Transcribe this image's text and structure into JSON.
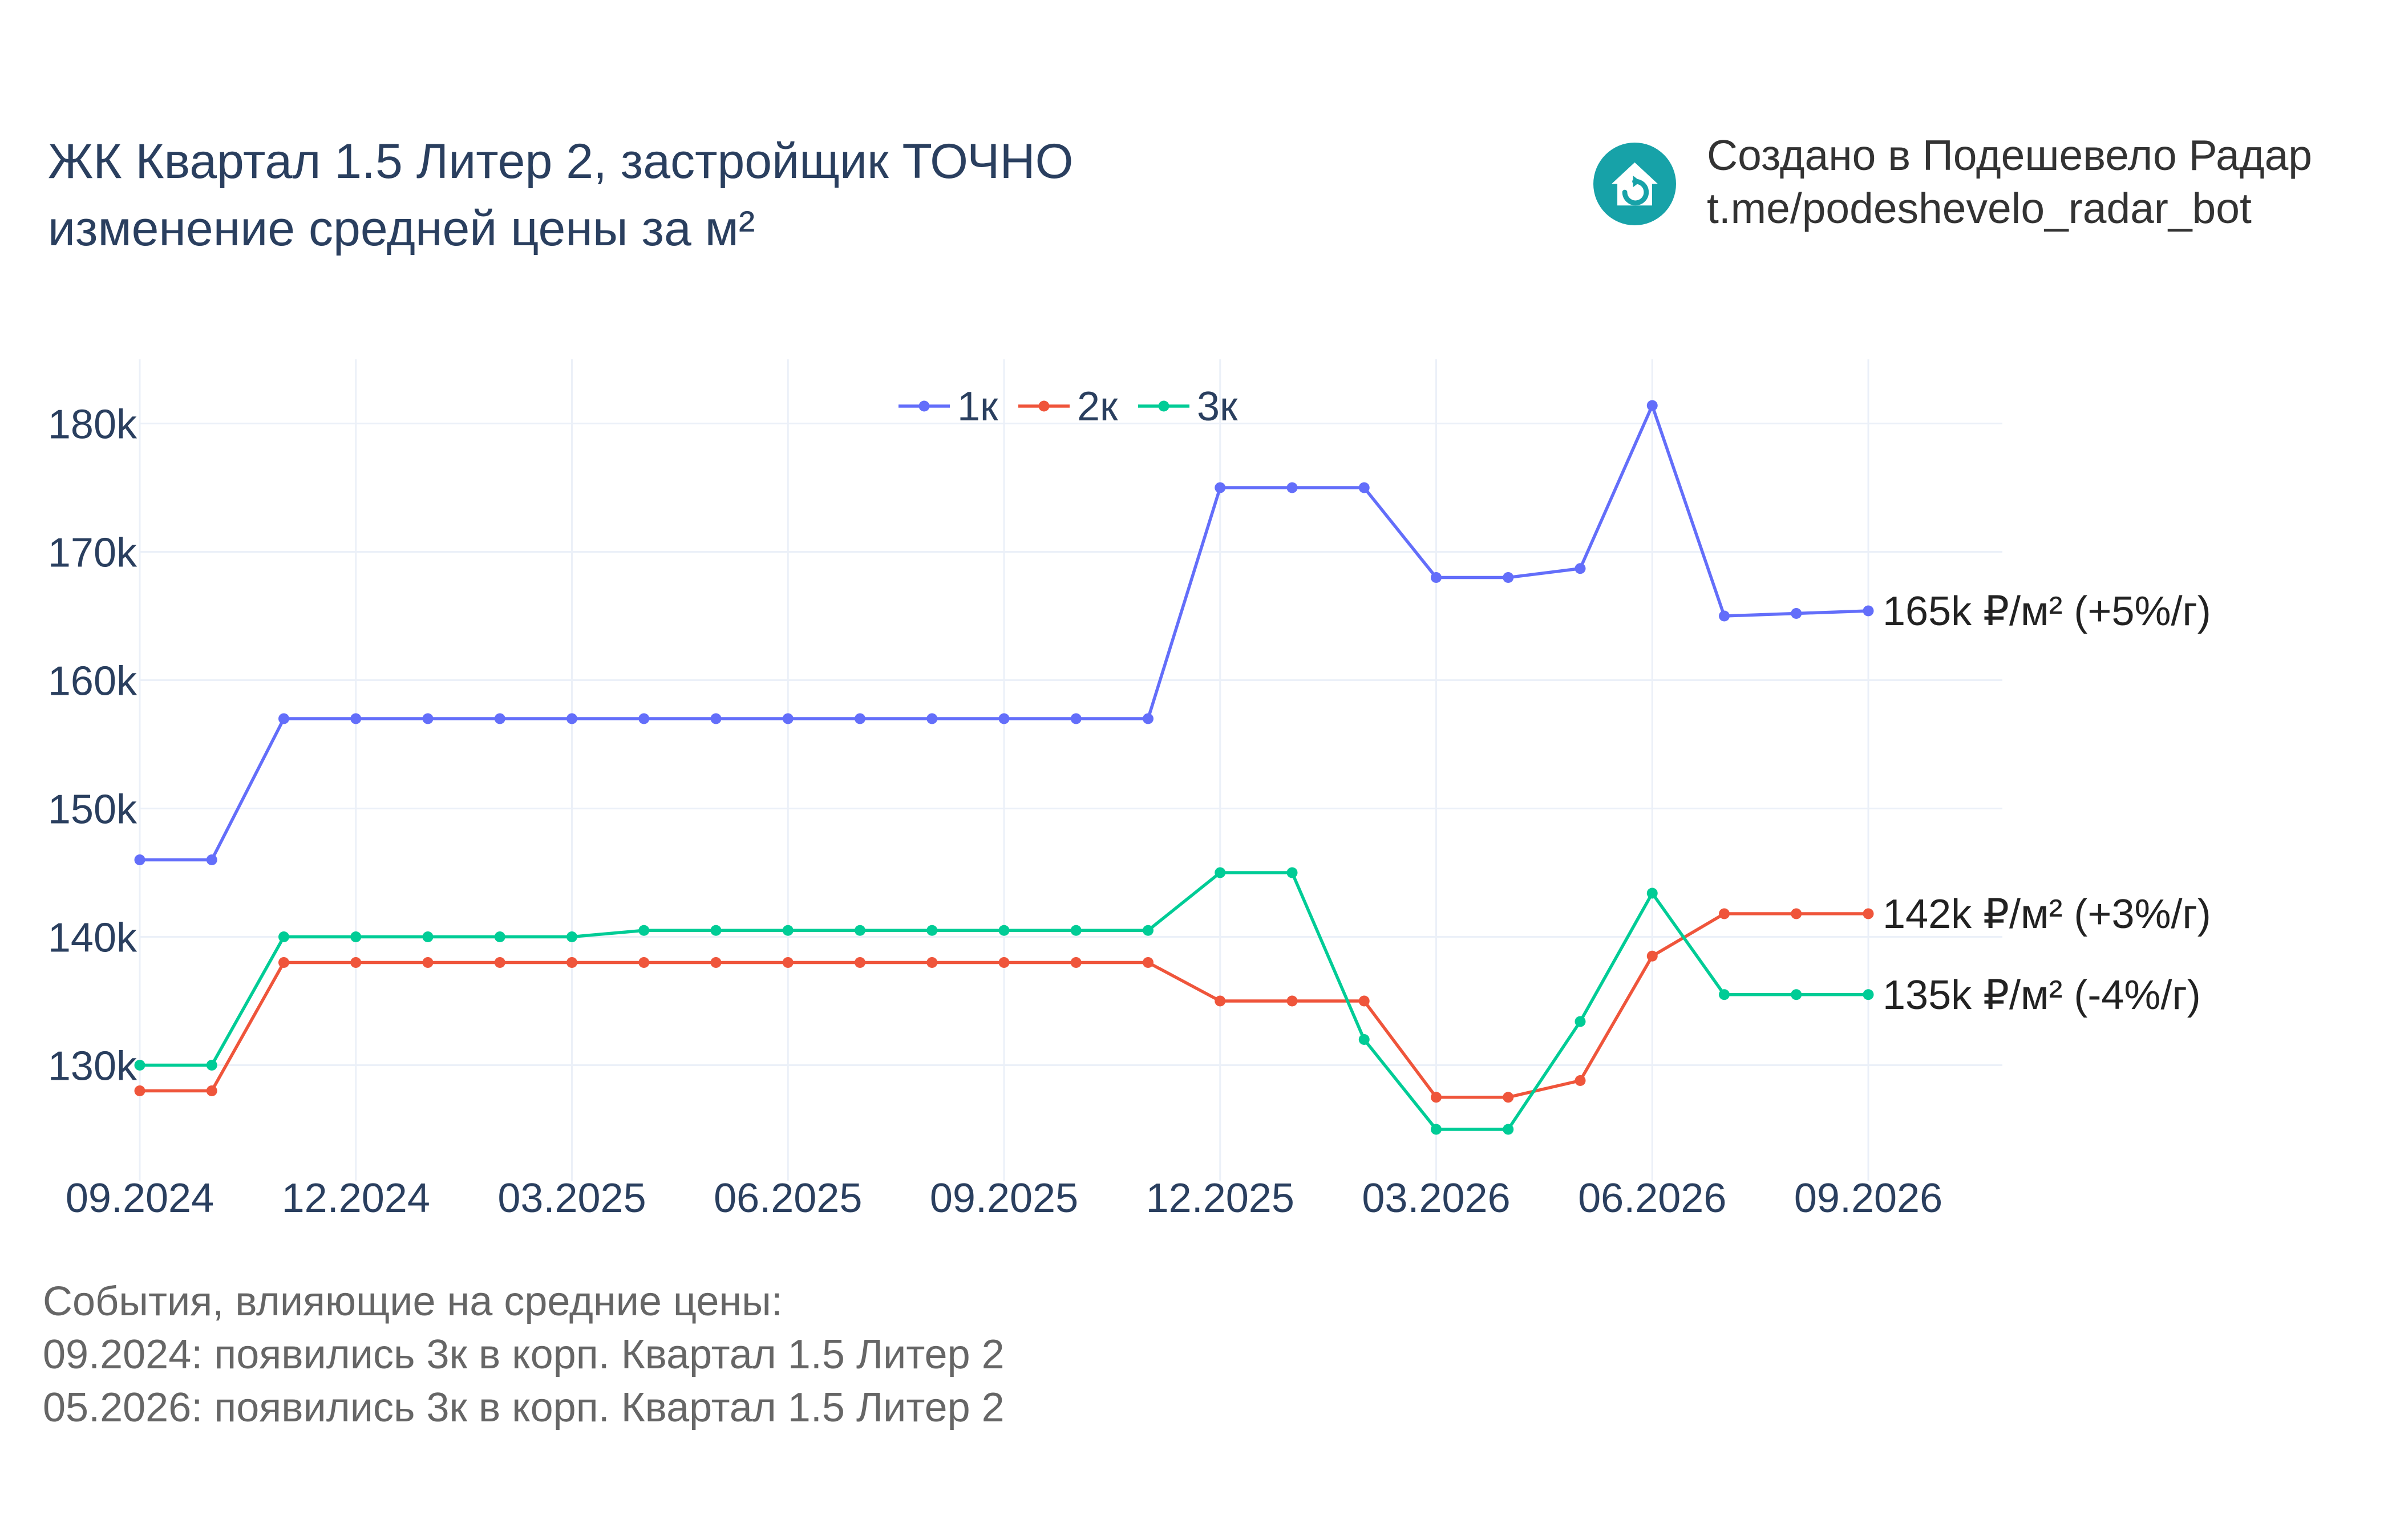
{
  "header": {
    "title_line1": "ЖК Квартал 1.5 Литер 2, застройщик ТОЧНО",
    "title_line2": "изменение средней цены за м²"
  },
  "credit": {
    "line1": "Создано в Подешевело Радар",
    "line2": "t.me/podeshevelo_radar_bot",
    "logo_icon": "house-refresh-icon",
    "logo_color": "#17a2a8"
  },
  "events": {
    "heading": "События, влияющие на средние цены:",
    "items": [
      "09.2024: появились 3к в корп. Квартал 1.5 Литер 2",
      "05.2026: появились 3к в корп. Квартал 1.5 Литер 2"
    ]
  },
  "chart_data": {
    "type": "line",
    "x": [
      "09.2024",
      "10.2024",
      "11.2024",
      "12.2024",
      "01.2025",
      "02.2025",
      "03.2025",
      "04.2025",
      "05.2025",
      "06.2025",
      "07.2025",
      "08.2025",
      "09.2025",
      "10.2025",
      "11.2025",
      "12.2025",
      "01.2026",
      "02.2026",
      "03.2026",
      "04.2026",
      "05.2026",
      "06.2026",
      "07.2026",
      "08.2026",
      "09.2026"
    ],
    "x_tick_labels": [
      "09.2024",
      "12.2024",
      "03.2025",
      "06.2025",
      "09.2025",
      "12.2025",
      "03.2026",
      "06.2026",
      "09.2026"
    ],
    "y_tick_labels": [
      "130k",
      "140k",
      "150k",
      "160k",
      "170k",
      "180k"
    ],
    "y_ticks": [
      130000,
      140000,
      150000,
      160000,
      170000,
      180000
    ],
    "ylim": [
      121000,
      185000
    ],
    "grid": true,
    "legend_position": "top-center",
    "series": [
      {
        "name": "1к",
        "color": "#636efa",
        "values": [
          146000,
          146000,
          157000,
          157000,
          157000,
          157000,
          157000,
          157000,
          157000,
          157000,
          157000,
          157000,
          157000,
          157000,
          157000,
          175000,
          175000,
          175000,
          168000,
          168000,
          168700,
          181400,
          165000,
          165200,
          165400
        ],
        "end_label": "165k ₽/м² (+5%/г)"
      },
      {
        "name": "2к",
        "color": "#ef553b",
        "values": [
          128000,
          128000,
          138000,
          138000,
          138000,
          138000,
          138000,
          138000,
          138000,
          138000,
          138000,
          138000,
          138000,
          138000,
          138000,
          135000,
          135000,
          135000,
          127500,
          127500,
          128800,
          138500,
          141800,
          141800,
          141800
        ],
        "end_label": "142k ₽/м² (+3%/г)"
      },
      {
        "name": "3к",
        "color": "#00cc96",
        "values": [
          130000,
          130000,
          140000,
          140000,
          140000,
          140000,
          140000,
          140500,
          140500,
          140500,
          140500,
          140500,
          140500,
          140500,
          140500,
          145000,
          145000,
          132000,
          125000,
          125000,
          133400,
          143400,
          135500,
          135500,
          135500
        ],
        "end_label": "135k ₽/м² (-4%/г)"
      }
    ]
  }
}
